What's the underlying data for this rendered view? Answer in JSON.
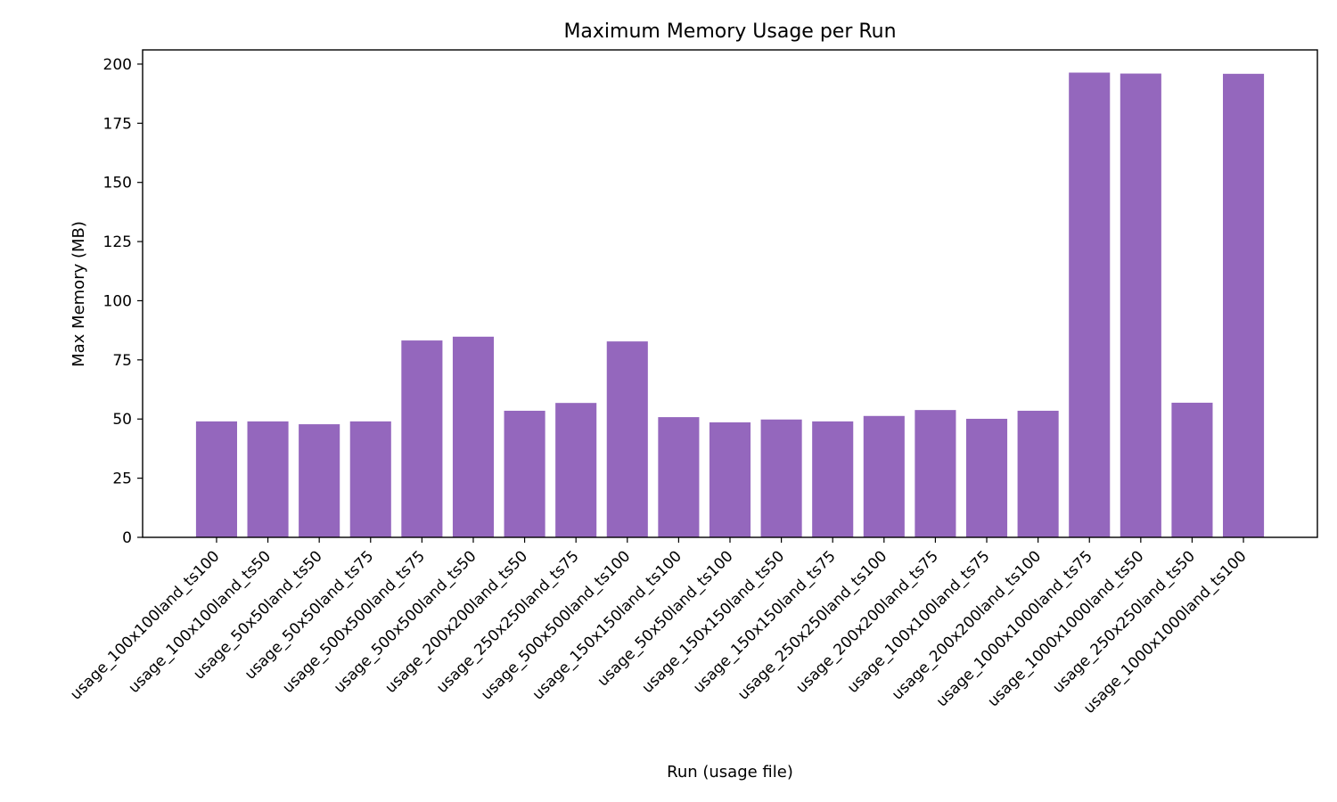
{
  "chart_data": {
    "type": "bar",
    "title": "Maximum Memory Usage per Run",
    "xlabel": "Run (usage file)",
    "ylabel": "Max Memory (MB)",
    "ylim": [
      0,
      206
    ],
    "yticks": [
      0,
      25,
      50,
      75,
      100,
      125,
      150,
      175,
      200
    ],
    "grid": false,
    "bar_color": "#9467bd",
    "categories": [
      "usage_100x100land_ts100",
      "usage_100x100land_ts50",
      "usage_50x50land_ts50",
      "usage_50x50land_ts75",
      "usage_500x500land_ts75",
      "usage_500x500land_ts50",
      "usage_200x200land_ts50",
      "usage_250x250land_ts75",
      "usage_500x500land_ts100",
      "usage_150x150land_ts100",
      "usage_50x50land_ts100",
      "usage_150x150land_ts50",
      "usage_150x150land_ts75",
      "usage_250x250land_ts100",
      "usage_200x200land_ts75",
      "usage_100x100land_ts75",
      "usage_200x200land_ts100",
      "usage_1000x1000land_ts75",
      "usage_1000x1000land_ts50",
      "usage_250x250land_ts50",
      "usage_1000x1000land_ts100"
    ],
    "values": [
      49.0,
      49.0,
      47.8,
      49.0,
      83.2,
      84.8,
      53.5,
      56.8,
      82.8,
      50.8,
      48.6,
      49.8,
      49.0,
      51.3,
      53.8,
      50.1,
      53.5,
      196.4,
      196.0,
      56.9,
      195.9
    ]
  }
}
